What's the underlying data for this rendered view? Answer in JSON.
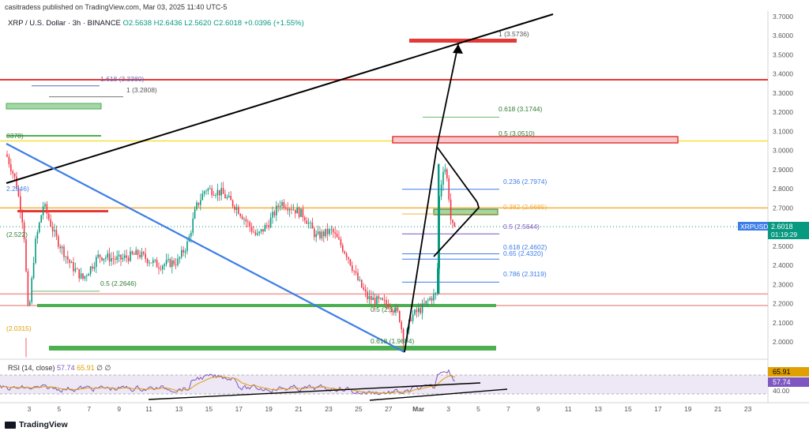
{
  "header": {
    "published": "casitradess published on TradingView.com, Mar 03, 2025 11:40 UTC-5",
    "symbol": "XRP / U.S. Dollar · 3h · BINANCE",
    "open": "O2.5638",
    "high": "H2.6436",
    "low": "L2.5620",
    "close": "C2.6018",
    "change": "+0.0396 (+1.55%)"
  },
  "price_badge": {
    "symbol": "XRPUSD",
    "price": "2.6018",
    "countdown": "01:19:29"
  },
  "rsi": {
    "label": "RSI (14, close)",
    "value1": "57.74",
    "value2": "65.91",
    "extra": "∅ ∅",
    "badge_high": "65.91",
    "badge_low": "57.74",
    "level": "40.00"
  },
  "fib_labels": {
    "top": "1 (3.5736)",
    "l1618": "1.618 (3.3380)",
    "l1": "1 (3.2808)",
    "r0618": "0.618 (3.1744)",
    "r05": "0.5 (3.0510)",
    "r0236": "0.236 (2.7974)",
    "r0382": "0.382 (2.6685)",
    "r05b": "0.5 (2.5644)",
    "r0618b": "0.618 (2.4602)",
    "r065": "0.65 (2.4320)",
    "r0786": "0.786 (2.3119)",
    "l05": "0.5 (2.2646)",
    "l05b": "0.5 (2.1)",
    "l0618": "0.618 (1.9674)",
    "left_2846": "2.2846)",
    "left_522": "(2.522)",
    "left_0315": "(2.0315)",
    "left_0378": "0378)"
  },
  "footer": {
    "brand": "TradingView"
  },
  "chart_data": {
    "type": "candlestick",
    "y_axis": {
      "ticks": [
        "3.7000",
        "3.6000",
        "3.5000",
        "3.4000",
        "3.3000",
        "3.2000",
        "3.1000",
        "3.0000",
        "2.9000",
        "2.8000",
        "2.7000",
        "2.6000",
        "2.5000",
        "2.4000",
        "2.3000",
        "2.2000",
        "2.1000",
        "2.0000"
      ],
      "range": [
        1.95,
        3.72
      ]
    },
    "x_axis": {
      "ticks": [
        "3",
        "5",
        "7",
        "9",
        "11",
        "13",
        "15",
        "17",
        "19",
        "21",
        "23",
        "25",
        "27",
        "Mar",
        "3",
        "5",
        "7",
        "9",
        "11",
        "13",
        "15",
        "17",
        "19",
        "21",
        "23"
      ]
    },
    "last_price": 2.6018,
    "horizontal_levels": [
      {
        "price": 3.57,
        "color": "#e53935"
      },
      {
        "price": 3.37,
        "color": "#e53935"
      },
      {
        "price": 3.05,
        "color": "#f5e23b"
      },
      {
        "price": 2.7,
        "color": "#f5b041"
      },
      {
        "price": 2.25,
        "color": "#ef9a9a"
      },
      {
        "price": 2.19,
        "color": "#ef9a9a"
      }
    ],
    "key_points": [
      {
        "x": "Feb 3",
        "y": 3.0
      },
      {
        "x": "Feb 3",
        "y": 2.05
      },
      {
        "x": "Feb 14",
        "y": 2.82
      },
      {
        "x": "Feb 21",
        "y": 2.7
      },
      {
        "x": "Feb 28",
        "y": 1.97
      },
      {
        "x": "Mar 2",
        "y": 3.0
      },
      {
        "x": "Mar 3",
        "y": 2.6018
      }
    ]
  },
  "colors": {
    "up": "#089981",
    "down": "#f23645",
    "trend_blue": "#3d7ee8",
    "rsi": "#7e57c2",
    "rsi_ma": "#e0a000"
  }
}
